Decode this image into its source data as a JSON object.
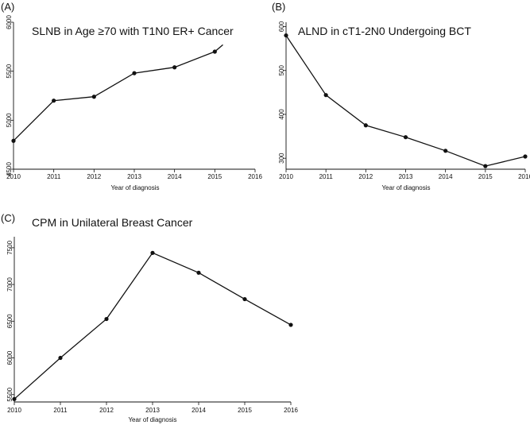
{
  "chart_data": [
    {
      "type": "line",
      "panel": "(A)",
      "title": "SLNB in Age ≥70 with T1N0 ER+ Cancer",
      "xlabel": "Year of diagnosis",
      "ylabel": "",
      "categories": [
        "2010",
        "2011",
        "2012",
        "2013",
        "2014",
        "2015",
        "2016"
      ],
      "xlim": [
        2010,
        2016
      ],
      "ylim": [
        4500,
        6000
      ],
      "yticks": [
        4500,
        5000,
        5500,
        6000
      ],
      "x": [
        2010,
        2011,
        2012,
        2013,
        2014,
        2015
      ],
      "values": [
        4790,
        5200,
        5240,
        5480,
        5540,
        5700
      ],
      "extension": [
        2015.2,
        5770
      ]
    },
    {
      "type": "line",
      "panel": "(B)",
      "title": "ALND in cT1-2N0 Undergoing BCT",
      "xlabel": "Year of diagnosis",
      "ylabel": "",
      "categories": [
        "2010",
        "2011",
        "2012",
        "2013",
        "2014",
        "2015",
        "2016"
      ],
      "xlim": [
        2010,
        2016
      ],
      "ylim": [
        275,
        610
      ],
      "yticks": [
        300,
        400,
        500,
        600
      ],
      "x": [
        2010,
        2011,
        2012,
        2013,
        2014,
        2015,
        2016
      ],
      "values": [
        580,
        444,
        375,
        348,
        317,
        282,
        304
      ]
    },
    {
      "type": "line",
      "panel": "(C)",
      "title": "CPM in Unilateral Breast Cancer",
      "xlabel": "Year of diagnosis",
      "ylabel": "",
      "categories": [
        "2010",
        "2011",
        "2012",
        "2013",
        "2014",
        "2015",
        "2016"
      ],
      "xlim": [
        2010,
        2016
      ],
      "ylim": [
        5400,
        7650
      ],
      "yticks": [
        5500,
        6000,
        6500,
        7000,
        7500
      ],
      "x": [
        2010,
        2011,
        2012,
        2013,
        2014,
        2015,
        2016
      ],
      "values": [
        5440,
        6000,
        6530,
        7430,
        7160,
        6800,
        6450
      ]
    }
  ]
}
